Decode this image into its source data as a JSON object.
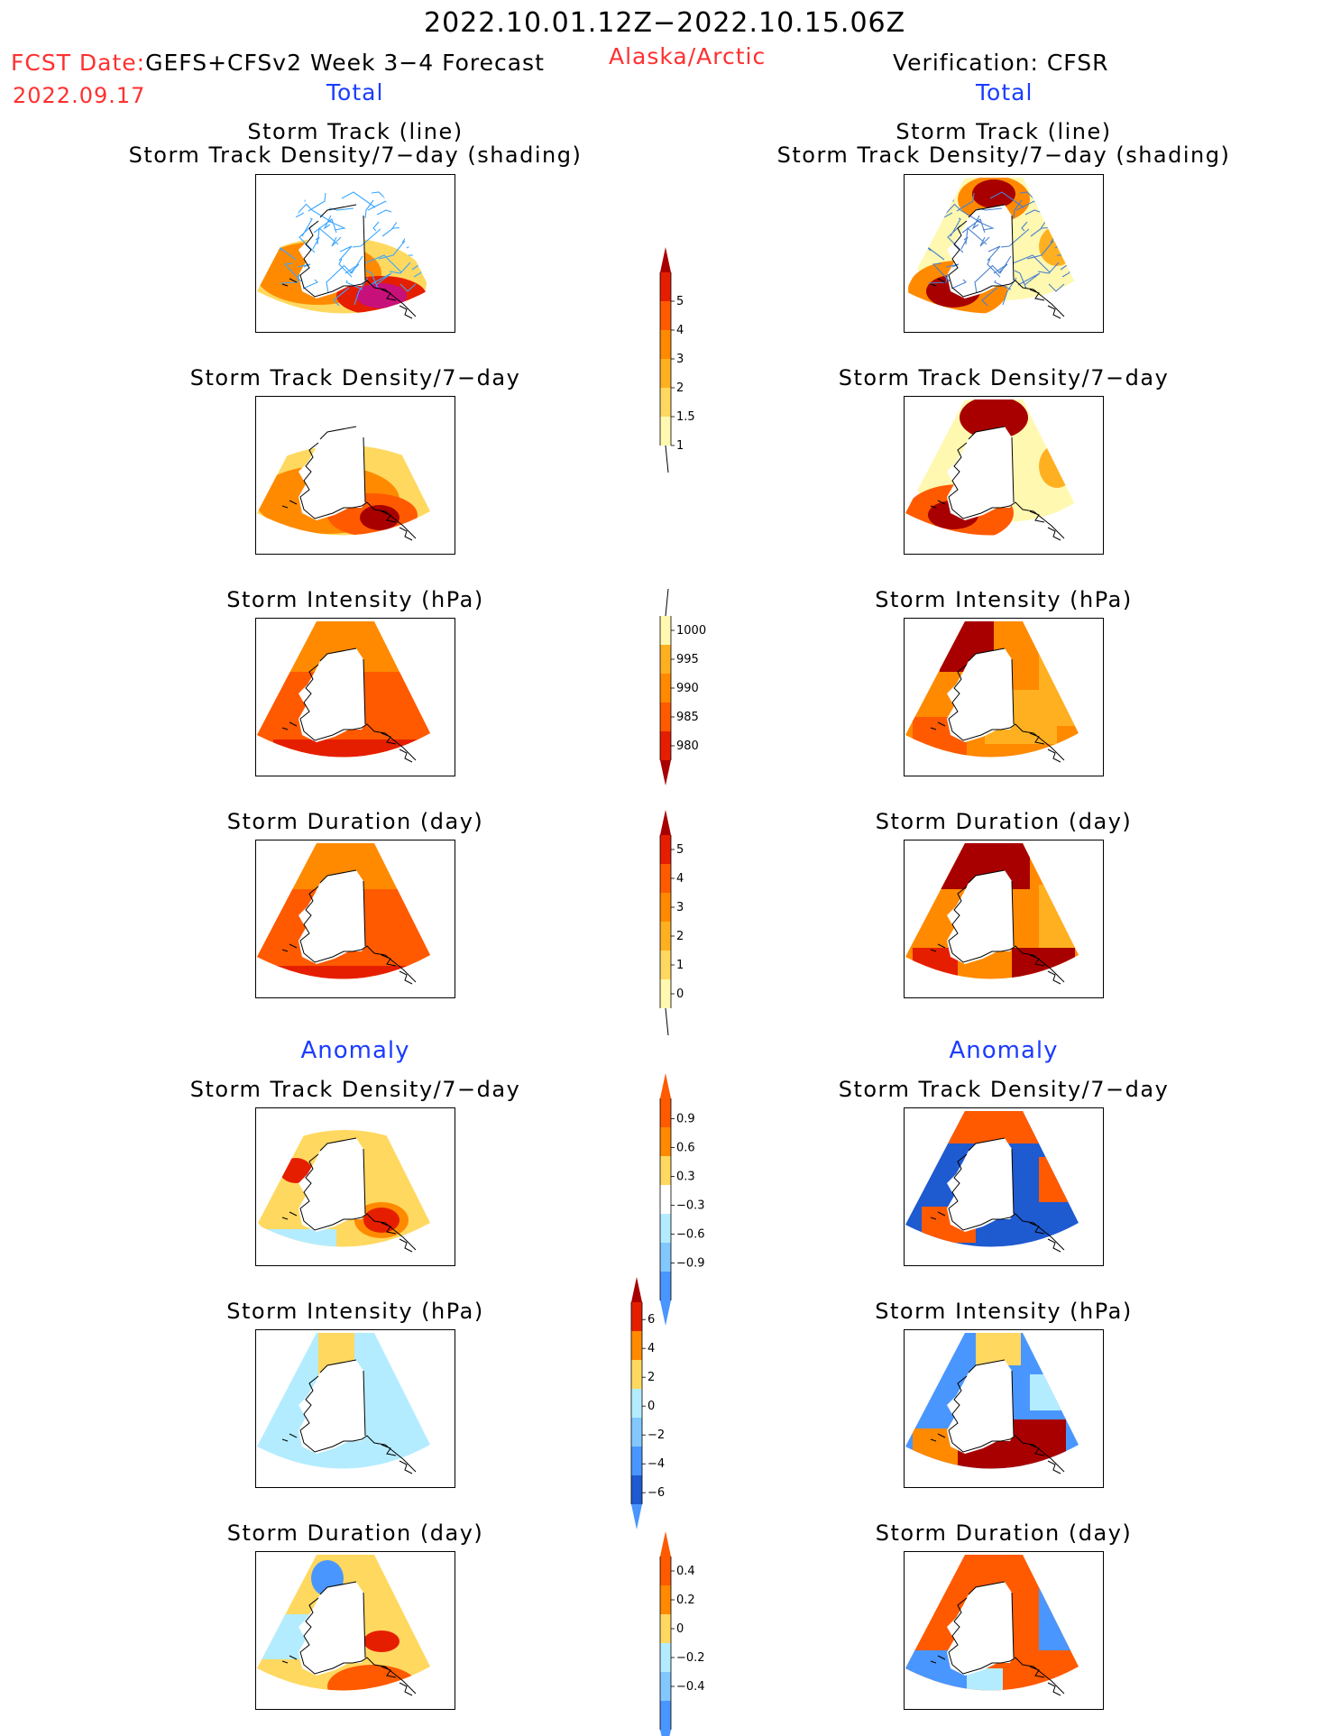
{
  "header": {
    "period": "2022.10.01.12Z−2022.10.15.06Z",
    "fcst_label": "FCST Date:",
    "fcst_model": "GEFS+CFSv2 Week 3−4 Forecast",
    "fcst_date": "2022.09.17",
    "region": "Alaska/Arctic",
    "verification": "Verification: CFSR",
    "left_total": "Total",
    "right_total": "Total",
    "left_anomaly": "Anomaly",
    "right_anomaly": "Anomaly"
  },
  "panel_titles": {
    "track_line": "Storm Track (line)",
    "track_shading": "Storm Track Density/7−day (shading)",
    "density": "Storm Track Density/7−day",
    "intensity": "Storm Intensity (hPa)",
    "duration": "Storm Duration (day)"
  },
  "colors": {
    "yellow_pale": "#fff8b0",
    "yellow": "#ffd860",
    "orange_light": "#ffb020",
    "orange": "#ff8a00",
    "orange_dark": "#ff5a00",
    "red": "#e61e00",
    "dark_red": "#a80000",
    "blue_pale": "#b4ecff",
    "blue_light": "#82c8ff",
    "blue": "#4a96ff",
    "blue_dark": "#1e5ad0",
    "track_line": "#3aa6ff"
  },
  "colorbars": {
    "density_total": {
      "labels": [
        "5",
        "4",
        "3",
        "2",
        "1.5",
        "1"
      ]
    },
    "intensity_total": {
      "labels": [
        "1000",
        "995",
        "990",
        "985",
        "980"
      ]
    },
    "duration_total": {
      "labels": [
        "5",
        "4",
        "3",
        "2",
        "1",
        "0"
      ]
    },
    "density_anom": {
      "labels": [
        "0.9",
        "0.6",
        "0.3",
        "−0.3",
        "−0.6",
        "−0.9"
      ]
    },
    "intensity_anom": {
      "labels": [
        "6",
        "4",
        "2",
        "0",
        "−2",
        "−4",
        "−6"
      ]
    },
    "duration_anom": {
      "labels": [
        "0.4",
        "0.2",
        "0",
        "−0.2",
        "−0.4"
      ]
    }
  }
}
